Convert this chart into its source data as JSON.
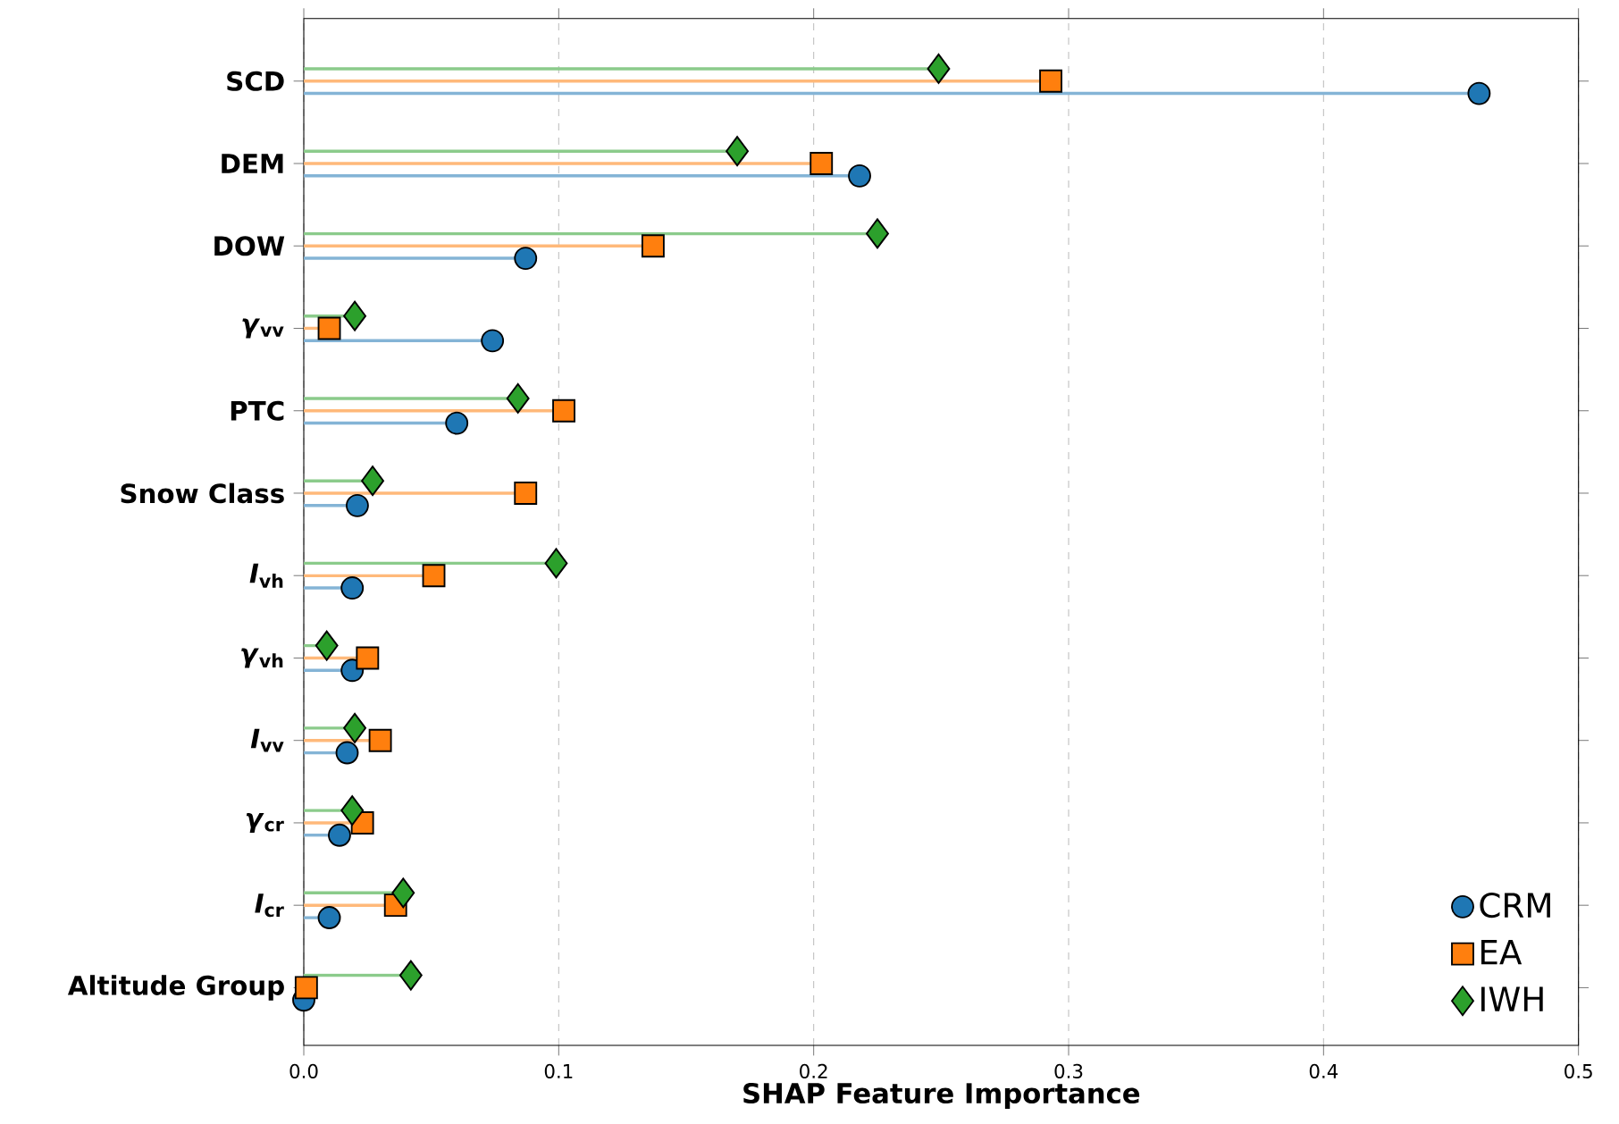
{
  "chart_data": {
    "type": "lollipop",
    "orientation": "horizontal",
    "xlabel": "SHAP Feature Importance",
    "categories": [
      "SCD",
      "DEM",
      "DOW",
      "*γ*$_{vv}$",
      "PTC",
      "Snow Class",
      "*I*$_{vh}$",
      "*γ*$_{vh}$",
      "*I*$_{vv}$",
      "*γ*$_{cr}$",
      "*I*$_{cr}$",
      "Altitude Group"
    ],
    "series": [
      {
        "name": "CRM",
        "color": "#1f77b4",
        "marker": "circle",
        "values": [
          0.461,
          0.218,
          0.087,
          0.074,
          0.06,
          0.021,
          0.019,
          0.019,
          0.017,
          0.014,
          0.01,
          0.0
        ]
      },
      {
        "name": "EA",
        "color": "#ff7f0e",
        "marker": "square",
        "values": [
          0.293,
          0.203,
          0.137,
          0.01,
          0.102,
          0.087,
          0.051,
          0.025,
          0.03,
          0.023,
          0.036,
          0.001
        ]
      },
      {
        "name": "IWH",
        "color": "#2ca02c",
        "marker": "diamond",
        "values": [
          0.249,
          0.17,
          0.225,
          0.02,
          0.084,
          0.027,
          0.099,
          0.009,
          0.02,
          0.019,
          0.039,
          0.042
        ]
      }
    ],
    "xlim": [
      0,
      0.5
    ],
    "xticks": [
      {
        "value": 0,
        "label": "0.0"
      },
      {
        "value": 0.1,
        "label": "0.1"
      },
      {
        "value": 0.2,
        "label": "0.2"
      },
      {
        "value": 0.3,
        "label": "0.3"
      },
      {
        "value": 0.4,
        "label": "0.4"
      },
      {
        "value": 0.5,
        "label": "0.5"
      }
    ],
    "grid": "x",
    "legend": "bottom right"
  }
}
